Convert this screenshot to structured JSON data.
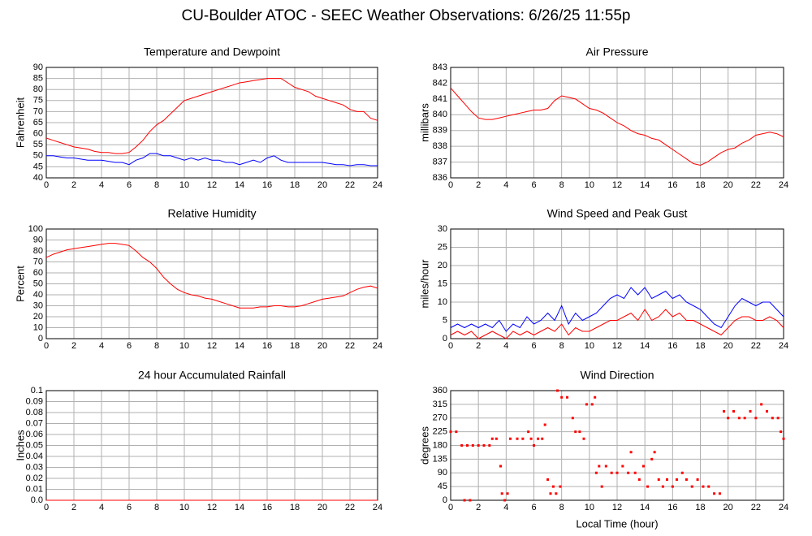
{
  "title": "CU-Boulder ATOC - SEEC Weather Observations: 6/26/25 11:55p",
  "chart_data": [
    {
      "type": "line",
      "title": "Temperature and Dewpoint",
      "ylabel": "Fahrenheit",
      "x": [
        0,
        0.5,
        1,
        1.5,
        2,
        2.5,
        3,
        3.5,
        4,
        4.5,
        5,
        5.5,
        6,
        6.5,
        7,
        7.5,
        8,
        8.5,
        9,
        9.5,
        10,
        10.5,
        11,
        11.5,
        12,
        12.5,
        13,
        13.5,
        14,
        14.5,
        15,
        15.5,
        16,
        16.5,
        17,
        17.5,
        18,
        18.5,
        19,
        19.5,
        20,
        20.5,
        21,
        21.5,
        22,
        22.5,
        23,
        23.5,
        24
      ],
      "series": [
        {
          "color": "#ff0000",
          "values": [
            58,
            57,
            56,
            55,
            54,
            53.5,
            53,
            52,
            51.5,
            51.5,
            51,
            51,
            51.5,
            54,
            57,
            61,
            64,
            66,
            69,
            72,
            75,
            76,
            77,
            78,
            79,
            80,
            81,
            82,
            83,
            83.5,
            84,
            84.5,
            85,
            85,
            85,
            83,
            81,
            80,
            79,
            77,
            76,
            75,
            74,
            73,
            71,
            70,
            70,
            67,
            66
          ]
        },
        {
          "color": "#0000ff",
          "values": [
            50,
            50,
            49.5,
            49,
            49,
            48.5,
            48,
            48,
            48,
            47.5,
            47,
            47,
            46,
            48,
            49,
            51,
            51,
            50,
            50,
            49,
            48,
            49,
            48,
            49,
            48,
            48,
            47,
            47,
            46,
            47,
            48,
            47,
            49,
            50,
            48,
            47,
            47,
            47,
            47,
            47,
            47,
            46.5,
            46,
            46,
            45.5,
            46,
            46,
            45.5,
            45.5
          ]
        }
      ],
      "xlim": [
        0,
        24
      ],
      "xticks": [
        0,
        2,
        4,
        6,
        8,
        10,
        12,
        14,
        16,
        18,
        20,
        22,
        24
      ],
      "ylim": [
        40,
        90
      ],
      "yticks": [
        40,
        45,
        50,
        55,
        60,
        65,
        70,
        75,
        80,
        85,
        90
      ],
      "grid": true
    },
    {
      "type": "line",
      "title": "Air Pressure",
      "ylabel": "millibars",
      "x": [
        0,
        0.5,
        1,
        1.5,
        2,
        2.5,
        3,
        3.5,
        4,
        4.5,
        5,
        5.5,
        6,
        6.5,
        7,
        7.5,
        8,
        8.5,
        9,
        9.5,
        10,
        10.5,
        11,
        11.5,
        12,
        12.5,
        13,
        13.5,
        14,
        14.5,
        15,
        15.5,
        16,
        16.5,
        17,
        17.5,
        18,
        18.5,
        19,
        19.5,
        20,
        20.5,
        21,
        21.5,
        22,
        22.5,
        23,
        23.5,
        24
      ],
      "series": [
        {
          "color": "#ff0000",
          "values": [
            841.7,
            841.2,
            840.7,
            840.2,
            839.8,
            839.7,
            839.7,
            839.8,
            839.9,
            840,
            840.1,
            840.2,
            840.3,
            840.3,
            840.4,
            840.9,
            841.2,
            841.1,
            841,
            840.7,
            840.4,
            840.3,
            840.1,
            839.8,
            839.5,
            839.3,
            839,
            838.8,
            838.7,
            838.5,
            838.4,
            838.1,
            837.8,
            837.5,
            837.2,
            836.9,
            836.8,
            837,
            837.3,
            837.6,
            837.8,
            837.9,
            838.2,
            838.4,
            838.7,
            838.8,
            838.9,
            838.8,
            838.6
          ]
        }
      ],
      "xlim": [
        0,
        24
      ],
      "xticks": [
        0,
        2,
        4,
        6,
        8,
        10,
        12,
        14,
        16,
        18,
        20,
        22,
        24
      ],
      "ylim": [
        836,
        843
      ],
      "yticks": [
        836,
        837,
        838,
        839,
        840,
        841,
        842,
        843
      ],
      "grid": true
    },
    {
      "type": "line",
      "title": "Relative Humidity",
      "ylabel": "Percent",
      "x": [
        0,
        0.5,
        1,
        1.5,
        2,
        2.5,
        3,
        3.5,
        4,
        4.5,
        5,
        5.5,
        6,
        6.5,
        7,
        7.5,
        8,
        8.5,
        9,
        9.5,
        10,
        10.5,
        11,
        11.5,
        12,
        12.5,
        13,
        13.5,
        14,
        14.5,
        15,
        15.5,
        16,
        16.5,
        17,
        17.5,
        18,
        18.5,
        19,
        19.5,
        20,
        20.5,
        21,
        21.5,
        22,
        22.5,
        23,
        23.5,
        24
      ],
      "series": [
        {
          "color": "#ff0000",
          "values": [
            74,
            77,
            79,
            81,
            82,
            83,
            84,
            85,
            86,
            87,
            87,
            86,
            85,
            80,
            74,
            70,
            64,
            56,
            50,
            45,
            42,
            40,
            39,
            37,
            36,
            34,
            32,
            30,
            28,
            28,
            28,
            29,
            29,
            30,
            30,
            29,
            29,
            30,
            32,
            34,
            36,
            37,
            38,
            39,
            42,
            45,
            47,
            48,
            46
          ]
        }
      ],
      "xlim": [
        0,
        24
      ],
      "xticks": [
        0,
        2,
        4,
        6,
        8,
        10,
        12,
        14,
        16,
        18,
        20,
        22,
        24
      ],
      "ylim": [
        0,
        100
      ],
      "yticks": [
        0,
        10,
        20,
        30,
        40,
        50,
        60,
        70,
        80,
        90,
        100
      ],
      "grid": true
    },
    {
      "type": "line",
      "title": "Wind Speed and Peak Gust",
      "ylabel": "miles/hour",
      "x": [
        0,
        0.5,
        1,
        1.5,
        2,
        2.5,
        3,
        3.5,
        4,
        4.5,
        5,
        5.5,
        6,
        6.5,
        7,
        7.5,
        8,
        8.5,
        9,
        9.5,
        10,
        10.5,
        11,
        11.5,
        12,
        12.5,
        13,
        13.5,
        14,
        14.5,
        15,
        15.5,
        16,
        16.5,
        17,
        17.5,
        18,
        18.5,
        19,
        19.5,
        20,
        20.5,
        21,
        21.5,
        22,
        22.5,
        23,
        23.5,
        24
      ],
      "series": [
        {
          "color": "#0000ff",
          "values": [
            3,
            4,
            3,
            4,
            3,
            4,
            3,
            5,
            2,
            4,
            3,
            6,
            4,
            5,
            7,
            5,
            9,
            4,
            7,
            5,
            6,
            7,
            9,
            11,
            12,
            11,
            14,
            12,
            14,
            11,
            12,
            13,
            11,
            12,
            10,
            9,
            8,
            6,
            4,
            3,
            6,
            9,
            11,
            10,
            9,
            10,
            10,
            8,
            6
          ]
        },
        {
          "color": "#ff0000",
          "values": [
            1,
            2,
            1,
            2,
            0,
            1,
            2,
            1,
            0,
            2,
            1,
            2,
            1,
            2,
            3,
            2,
            4,
            1,
            3,
            2,
            2,
            3,
            4,
            5,
            5,
            6,
            7,
            5,
            8,
            5,
            6,
            8,
            6,
            7,
            5,
            5,
            4,
            3,
            2,
            1,
            3,
            5,
            6,
            6,
            5,
            5,
            6,
            5,
            3
          ]
        }
      ],
      "xlim": [
        0,
        24
      ],
      "xticks": [
        0,
        2,
        4,
        6,
        8,
        10,
        12,
        14,
        16,
        18,
        20,
        22,
        24
      ],
      "ylim": [
        0,
        30
      ],
      "yticks": [
        0,
        5,
        10,
        15,
        20,
        25,
        30
      ],
      "grid": true
    },
    {
      "type": "line",
      "title": "24 hour Accumulated Rainfall",
      "ylabel": "Inches",
      "x": [
        0,
        24
      ],
      "series": [
        {
          "color": "#ff0000",
          "values": [
            0,
            0
          ]
        }
      ],
      "xlim": [
        0,
        24
      ],
      "xticks": [
        0,
        2,
        4,
        6,
        8,
        10,
        12,
        14,
        16,
        18,
        20,
        22,
        24
      ],
      "ylim": [
        0,
        0.1
      ],
      "yticks": [
        {
          "value": 0,
          "label": "0.0"
        },
        0.01,
        0.02,
        0.03,
        0.04,
        0.05,
        0.06,
        0.07,
        0.08,
        0.09,
        0.1
      ],
      "grid": true
    },
    {
      "type": "scatter",
      "title": "Wind Direction",
      "ylabel": "degrees",
      "xlabel": "Local Time (hour)",
      "x": [
        0,
        0.4,
        0.8,
        1.0,
        1.2,
        1.4,
        1.6,
        2.0,
        2.4,
        2.8,
        3.0,
        3.3,
        3.6,
        3.7,
        3.9,
        4.1,
        4.3,
        4.8,
        5.2,
        5.6,
        5.8,
        6.0,
        6.3,
        6.6,
        6.8,
        7.0,
        7.2,
        7.4,
        7.6,
        7.7,
        7.9,
        8.0,
        8.4,
        8.8,
        9.0,
        9.3,
        9.6,
        9.8,
        10.2,
        10.4,
        10.5,
        10.7,
        10.9,
        11.2,
        11.6,
        12.0,
        12.4,
        12.8,
        13.0,
        13.3,
        13.6,
        13.9,
        14.2,
        14.5,
        14.7,
        15.0,
        15.3,
        15.6,
        16.0,
        16.3,
        16.7,
        17.0,
        17.4,
        17.8,
        18.2,
        18.6,
        19.0,
        19.4,
        19.7,
        20.0,
        20.4,
        20.8,
        21.2,
        21.6,
        22.0,
        22.4,
        22.8,
        23.2,
        23.6,
        23.8,
        24
      ],
      "series": [
        {
          "color": "#ff0000",
          "values": [
            225,
            225,
            180,
            0,
            180,
            0,
            180,
            180,
            180,
            180,
            202,
            202,
            112,
            22,
            0,
            22,
            202,
            202,
            202,
            225,
            202,
            180,
            202,
            202,
            248,
            68,
            22,
            45,
            22,
            360,
            45,
            338,
            338,
            270,
            225,
            225,
            202,
            315,
            315,
            338,
            90,
            112,
            45,
            112,
            90,
            90,
            112,
            90,
            158,
            90,
            68,
            112,
            45,
            135,
            158,
            68,
            45,
            68,
            45,
            68,
            90,
            68,
            45,
            68,
            45,
            45,
            22,
            22,
            292,
            270,
            292,
            270,
            270,
            292,
            270,
            315,
            292,
            270,
            270,
            225,
            202
          ]
        }
      ],
      "xlim": [
        0,
        24
      ],
      "xticks": [
        0,
        2,
        4,
        6,
        8,
        10,
        12,
        14,
        16,
        18,
        20,
        22,
        24
      ],
      "ylim": [
        0,
        360
      ],
      "yticks": [
        0,
        45,
        90,
        135,
        180,
        225,
        270,
        315,
        360
      ],
      "grid": true
    }
  ]
}
